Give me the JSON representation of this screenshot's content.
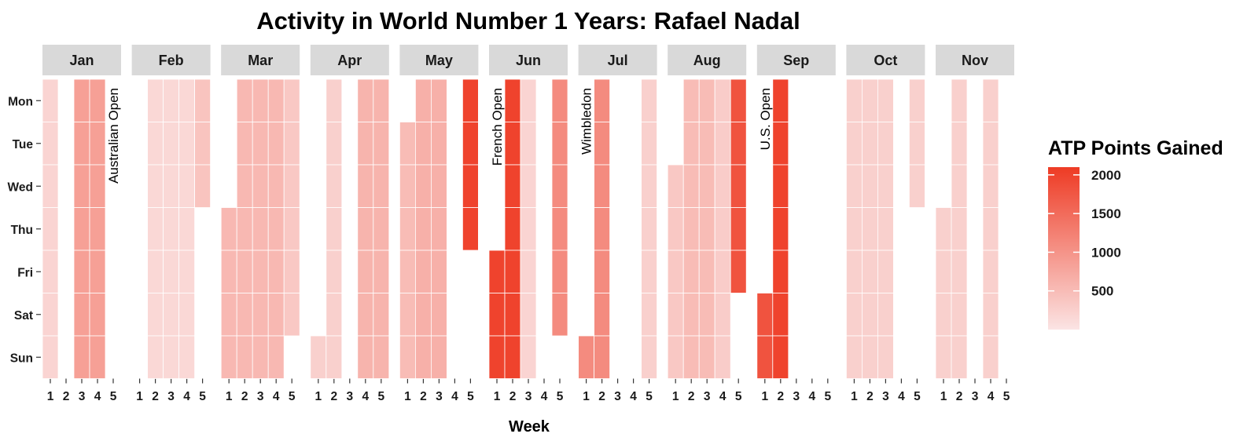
{
  "chart_data": {
    "type": "heatmap",
    "title": "Activity in World Number 1 Years: Rafael Nadal",
    "xlabel": "Week",
    "ylabel": "",
    "months": [
      "Jan",
      "Feb",
      "Mar",
      "Apr",
      "May",
      "Jun",
      "Jul",
      "Aug",
      "Sep",
      "Oct",
      "Nov"
    ],
    "weeks": [
      "1",
      "2",
      "3",
      "4",
      "5"
    ],
    "days": [
      "Mon",
      "Tue",
      "Wed",
      "Thu",
      "Fri",
      "Sat",
      "Sun"
    ],
    "legend": {
      "title": "ATP Points Gained",
      "min": 0,
      "max": 2100,
      "breaks": [
        500,
        1000,
        1500,
        2000
      ],
      "low_color": "#fbe4e4",
      "high_color": "#ee3b24"
    },
    "annotations": [
      {
        "text": "Australian Open",
        "month": "Jan",
        "week": 5
      },
      {
        "text": "French Open",
        "month": "Jun",
        "week": 1
      },
      {
        "text": "Wimbledon",
        "month": "Jul",
        "week": 1
      },
      {
        "text": "U.S. Open",
        "month": "Sep",
        "week": 1
      }
    ],
    "cells": [
      {
        "month": "Jan",
        "week": 1,
        "days": [
          0,
          6
        ],
        "points": 200
      },
      {
        "month": "Jan",
        "week": 3,
        "days": [
          0,
          6
        ],
        "points": 850
      },
      {
        "month": "Jan",
        "week": 4,
        "days": [
          0,
          6
        ],
        "points": 850
      },
      {
        "month": "Feb",
        "week": 2,
        "days": [
          0,
          6
        ],
        "points": 150
      },
      {
        "month": "Feb",
        "week": 3,
        "days": [
          0,
          6
        ],
        "points": 150
      },
      {
        "month": "Feb",
        "week": 4,
        "days": [
          0,
          6
        ],
        "points": 150
      },
      {
        "month": "Feb",
        "week": 5,
        "days": [
          0,
          2
        ],
        "points": 400
      },
      {
        "month": "Mar",
        "week": 1,
        "days": [
          3,
          6
        ],
        "points": 550
      },
      {
        "month": "Mar",
        "week": 2,
        "days": [
          0,
          6
        ],
        "points": 550
      },
      {
        "month": "Mar",
        "week": 3,
        "days": [
          0,
          6
        ],
        "points": 550
      },
      {
        "month": "Mar",
        "week": 4,
        "days": [
          0,
          6
        ],
        "points": 550
      },
      {
        "month": "Mar",
        "week": 5,
        "days": [
          0,
          5
        ],
        "points": 350
      },
      {
        "month": "Apr",
        "week": 1,
        "days": [
          6,
          6
        ],
        "points": 250
      },
      {
        "month": "Apr",
        "week": 2,
        "days": [
          0,
          6
        ],
        "points": 250
      },
      {
        "month": "Apr",
        "week": 4,
        "days": [
          0,
          6
        ],
        "points": 600
      },
      {
        "month": "Apr",
        "week": 5,
        "days": [
          0,
          6
        ],
        "points": 600
      },
      {
        "month": "May",
        "week": 1,
        "days": [
          1,
          6
        ],
        "points": 500
      },
      {
        "month": "May",
        "week": 2,
        "days": [
          0,
          6
        ],
        "points": 650
      },
      {
        "month": "May",
        "week": 3,
        "days": [
          0,
          6
        ],
        "points": 650
      },
      {
        "month": "May",
        "week": 5,
        "days": [
          0,
          3
        ],
        "points": 2000
      },
      {
        "month": "Jun",
        "week": 1,
        "days": [
          4,
          6
        ],
        "points": 2000
      },
      {
        "month": "Jun",
        "week": 2,
        "days": [
          0,
          6
        ],
        "points": 2000
      },
      {
        "month": "Jun",
        "week": 3,
        "days": [
          0,
          6
        ],
        "points": 200
      },
      {
        "month": "Jun",
        "week": 5,
        "days": [
          0,
          5
        ],
        "points": 1100
      },
      {
        "month": "Jul",
        "week": 1,
        "days": [
          6,
          6
        ],
        "points": 1100
      },
      {
        "month": "Jul",
        "week": 2,
        "days": [
          0,
          6
        ],
        "points": 1100
      },
      {
        "month": "Jul",
        "week": 5,
        "days": [
          0,
          6
        ],
        "points": 250
      },
      {
        "month": "Aug",
        "week": 1,
        "days": [
          2,
          6
        ],
        "points": 350
      },
      {
        "month": "Aug",
        "week": 2,
        "days": [
          0,
          6
        ],
        "points": 500
      },
      {
        "month": "Aug",
        "week": 3,
        "days": [
          0,
          6
        ],
        "points": 500
      },
      {
        "month": "Aug",
        "week": 4,
        "days": [
          0,
          6
        ],
        "points": 300
      },
      {
        "month": "Aug",
        "week": 5,
        "days": [
          0,
          4
        ],
        "points": 1800
      },
      {
        "month": "Sep",
        "week": 1,
        "days": [
          5,
          6
        ],
        "points": 1800
      },
      {
        "month": "Sep",
        "week": 2,
        "days": [
          0,
          6
        ],
        "points": 2000
      },
      {
        "month": "Oct",
        "week": 1,
        "days": [
          0,
          6
        ],
        "points": 250
      },
      {
        "month": "Oct",
        "week": 2,
        "days": [
          0,
          6
        ],
        "points": 250
      },
      {
        "month": "Oct",
        "week": 3,
        "days": [
          0,
          6
        ],
        "points": 250
      },
      {
        "month": "Oct",
        "week": 5,
        "days": [
          0,
          2
        ],
        "points": 250
      },
      {
        "month": "Nov",
        "week": 1,
        "days": [
          3,
          6
        ],
        "points": 250
      },
      {
        "month": "Nov",
        "week": 2,
        "days": [
          0,
          6
        ],
        "points": 250
      },
      {
        "month": "Nov",
        "week": 4,
        "days": [
          0,
          6
        ],
        "points": 250
      }
    ]
  }
}
